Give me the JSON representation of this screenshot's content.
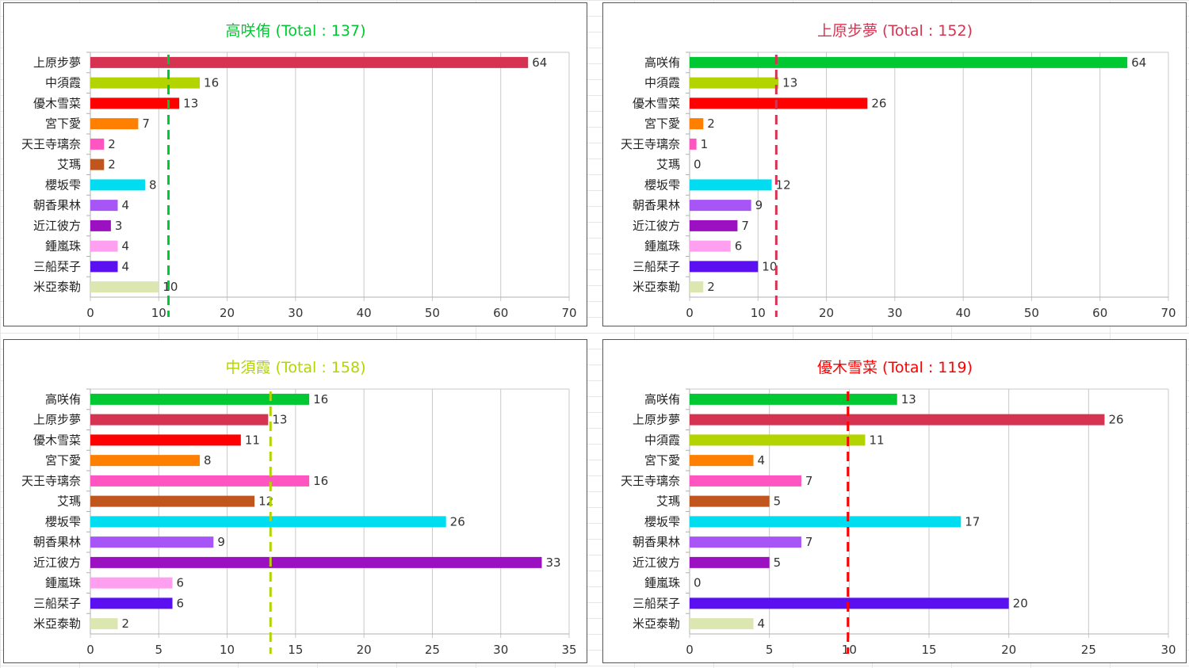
{
  "chart_data": [
    {
      "type": "bar",
      "orientation": "horizontal",
      "title": "高咲侑  (Total : 137)",
      "title_color": "#00c832",
      "categories": [
        "上原步夢",
        "中須霞",
        "優木雪菜",
        "宮下愛",
        "天王寺璃奈",
        "艾瑪",
        "櫻坂雫",
        "朝香果林",
        "近江彼方",
        "鍾嵐珠",
        "三船栞子",
        "米亞泰勒"
      ],
      "values": [
        64,
        16,
        13,
        7,
        2,
        2,
        8,
        4,
        3,
        4,
        4,
        10
      ],
      "average": 11.42,
      "average_color": "#00c832",
      "xlim": [
        0,
        70
      ],
      "xticks": [
        0,
        10,
        20,
        30,
        40,
        50,
        60,
        70
      ],
      "grid": true
    },
    {
      "type": "bar",
      "orientation": "horizontal",
      "title": "上原步夢  (Total : 152)",
      "title_color": "#d63352",
      "categories": [
        "高咲侑",
        "中須霞",
        "優木雪菜",
        "宮下愛",
        "天王寺璃奈",
        "艾瑪",
        "櫻坂雫",
        "朝香果林",
        "近江彼方",
        "鍾嵐珠",
        "三船栞子",
        "米亞泰勒"
      ],
      "values": [
        64,
        13,
        26,
        2,
        1,
        0,
        12,
        9,
        7,
        6,
        10,
        2
      ],
      "average": 12.67,
      "average_color": "#d63352",
      "xlim": [
        0,
        70
      ],
      "xticks": [
        0,
        10,
        20,
        30,
        40,
        50,
        60,
        70
      ],
      "grid": true
    },
    {
      "type": "bar",
      "orientation": "horizontal",
      "title": "中須霞  (Total : 158)",
      "title_color": "#b4d400",
      "categories": [
        "高咲侑",
        "上原步夢",
        "優木雪菜",
        "宮下愛",
        "天王寺璃奈",
        "艾瑪",
        "櫻坂雫",
        "朝香果林",
        "近江彼方",
        "鍾嵐珠",
        "三船栞子",
        "米亞泰勒"
      ],
      "values": [
        16,
        13,
        11,
        8,
        16,
        12,
        26,
        9,
        33,
        6,
        6,
        2
      ],
      "average": 13.17,
      "average_color": "#b4d400",
      "xlim": [
        0,
        35
      ],
      "xticks": [
        0,
        5,
        10,
        15,
        20,
        25,
        30,
        35
      ],
      "grid": true
    },
    {
      "type": "bar",
      "orientation": "horizontal",
      "title": "優木雪菜  (Total : 119)",
      "title_color": "#ff0000",
      "categories": [
        "高咲侑",
        "上原步夢",
        "中須霞",
        "宮下愛",
        "天王寺璃奈",
        "艾瑪",
        "櫻坂雫",
        "朝香果林",
        "近江彼方",
        "鍾嵐珠",
        "三船栞子",
        "米亞泰勒"
      ],
      "values": [
        13,
        26,
        11,
        4,
        7,
        5,
        17,
        7,
        5,
        0,
        20,
        4
      ],
      "average": 9.92,
      "average_color": "#ff0000",
      "xlim": [
        0,
        30
      ],
      "xticks": [
        0,
        5,
        10,
        15,
        20,
        25,
        30
      ],
      "grid": true
    }
  ],
  "member_colors": {
    "高咲侑": "#00c832",
    "上原步夢": "#d63352",
    "中須霞": "#b4d400",
    "優木雪菜": "#ff0000",
    "宮下愛": "#ff8000",
    "天王寺璃奈": "#ff55c0",
    "艾瑪": "#c0561e",
    "櫻坂雫": "#00dcf0",
    "朝香果林": "#a855f7",
    "近江彼方": "#9b10c0",
    "鍾嵐珠": "#ff9ff0",
    "三船栞子": "#5a10f0",
    "米亞泰勒": "#dbe6b0"
  }
}
